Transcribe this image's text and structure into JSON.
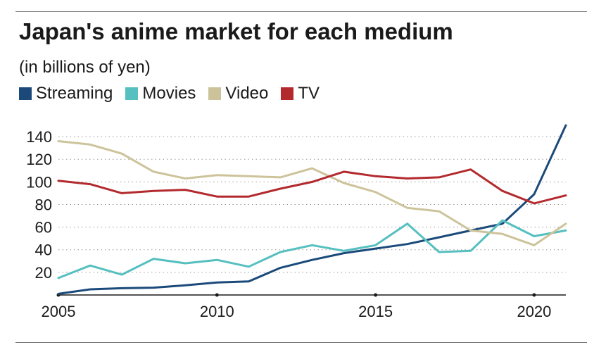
{
  "chart_data": {
    "type": "line",
    "title": "Japan's anime market for each medium",
    "subtitle": "(in billions of yen)",
    "xlabel": "",
    "ylabel": "",
    "xlim": [
      2005,
      2021
    ],
    "ylim": [
      0,
      155
    ],
    "x": [
      2005,
      2006,
      2007,
      2008,
      2009,
      2010,
      2011,
      2012,
      2013,
      2014,
      2015,
      2016,
      2017,
      2018,
      2019,
      2020,
      2021
    ],
    "x_ticks": [
      2005,
      2010,
      2015,
      2020
    ],
    "x_tick_labels": [
      "2005",
      "2010",
      "2015",
      "2020"
    ],
    "y_ticks": [
      20,
      40,
      60,
      80,
      100,
      120,
      140
    ],
    "y_tick_labels": [
      "20",
      "40",
      "60",
      "80",
      "100",
      "120",
      "140"
    ],
    "grid": "horizontal dotted",
    "legend_position": "top-left",
    "series": [
      {
        "name": "Streaming",
        "color": "#1b4a7a",
        "values": [
          1,
          5,
          6,
          6.5,
          8.5,
          11,
          12,
          24,
          31,
          37,
          41,
          45,
          51,
          57,
          63,
          89,
          150
        ]
      },
      {
        "name": "Movies",
        "color": "#56bfbf",
        "values": [
          15,
          26,
          18,
          32,
          28,
          31,
          25,
          38,
          44,
          39,
          44,
          63,
          38,
          39,
          66,
          52,
          57
        ]
      },
      {
        "name": "Video",
        "color": "#cdc39b",
        "values": [
          136,
          133,
          125,
          109,
          103,
          106,
          105,
          104,
          112,
          99,
          91,
          77,
          74,
          57,
          54,
          44,
          63
        ]
      },
      {
        "name": "TV",
        "color": "#b32a2e",
        "values": [
          101,
          98,
          90,
          92,
          93,
          87,
          87,
          94,
          100,
          109,
          105,
          103,
          104,
          111,
          92,
          81,
          88
        ]
      }
    ]
  }
}
